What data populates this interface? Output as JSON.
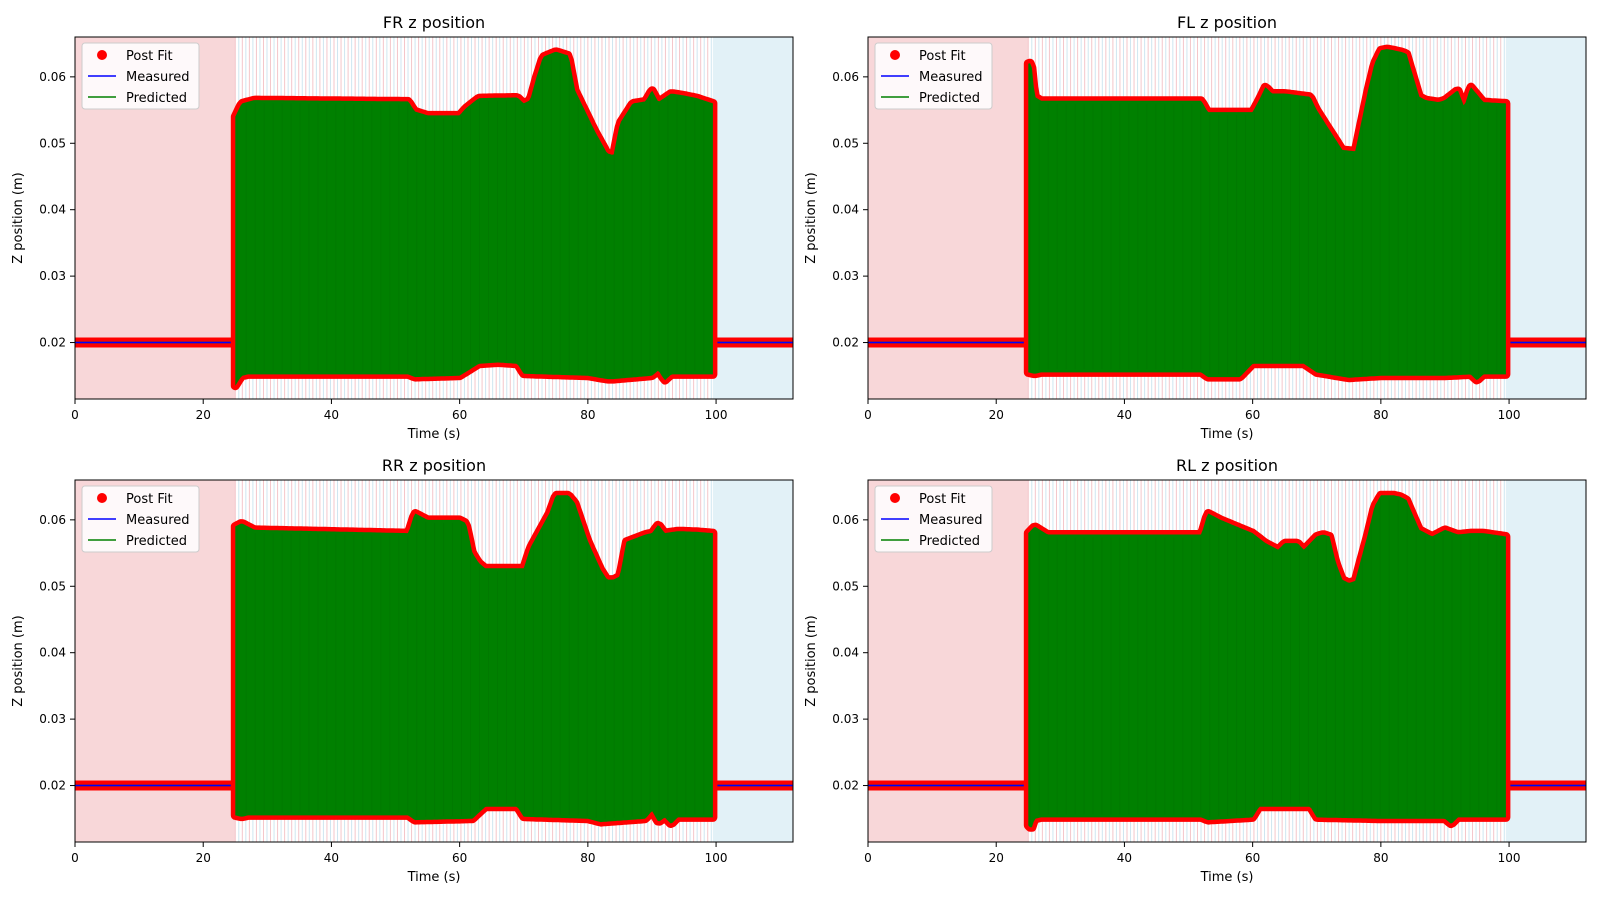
{
  "chart_data": [
    {
      "type": "line",
      "title": "FR z position",
      "xlabel": "Time (s)",
      "ylabel": "Z position (m)",
      "xlim": [
        0,
        112
      ],
      "ylim": [
        0.0115,
        0.066
      ],
      "xticks": [
        0,
        20,
        40,
        60,
        80,
        100
      ],
      "yticks": [
        0.02,
        0.03,
        0.04,
        0.05,
        0.06
      ],
      "grid": false,
      "legend_position": "top-left",
      "legend": [
        "Post Fit",
        "Measured",
        "Predicted"
      ],
      "stance_region_end": 25,
      "swing_region_start": 99.5,
      "oscillation_start": 25,
      "oscillation_end": 99.5,
      "steady_value": 0.02,
      "upper_envelope": {
        "x": [
          25,
          26,
          28,
          52,
          53,
          55,
          60,
          61,
          63,
          69,
          70,
          71,
          72,
          73,
          75,
          77,
          78,
          79,
          81,
          83,
          84,
          85,
          87,
          89,
          90,
          91,
          93,
          95,
          97,
          99.5
        ],
        "y": [
          0.054,
          0.056,
          0.0565,
          0.0563,
          0.0548,
          0.0542,
          0.0542,
          0.0553,
          0.0568,
          0.0569,
          0.056,
          0.0565,
          0.06,
          0.063,
          0.0638,
          0.0632,
          0.058,
          0.056,
          0.052,
          0.0485,
          0.0482,
          0.053,
          0.056,
          0.0563,
          0.058,
          0.0562,
          0.0575,
          0.0572,
          0.0568,
          0.056
        ]
      },
      "lower_envelope": {
        "x": [
          25,
          26,
          27,
          52,
          53,
          60,
          63,
          66,
          69,
          70,
          80,
          83,
          84,
          90,
          91,
          92,
          93,
          94,
          99.5
        ],
        "y": [
          0.0135,
          0.015,
          0.0152,
          0.0152,
          0.0148,
          0.015,
          0.0168,
          0.017,
          0.0168,
          0.0153,
          0.015,
          0.0145,
          0.0145,
          0.015,
          0.0158,
          0.0143,
          0.0152,
          0.0152,
          0.0152
        ]
      }
    },
    {
      "type": "line",
      "title": "FL z position",
      "xlabel": "Time (s)",
      "ylabel": "Z position (m)",
      "xlim": [
        0,
        112
      ],
      "ylim": [
        0.0115,
        0.066
      ],
      "xticks": [
        0,
        20,
        40,
        60,
        80,
        100
      ],
      "yticks": [
        0.02,
        0.03,
        0.04,
        0.05,
        0.06
      ],
      "grid": false,
      "legend_position": "top-left",
      "legend": [
        "Post Fit",
        "Measured",
        "Predicted"
      ],
      "stance_region_end": 25,
      "swing_region_start": 99.5,
      "oscillation_start": 25,
      "oscillation_end": 99.5,
      "steady_value": 0.02,
      "upper_envelope": {
        "x": [
          25,
          25.5,
          26,
          27,
          52,
          53,
          60,
          61,
          62,
          63,
          65,
          69,
          70,
          72,
          74,
          76,
          78,
          79,
          80,
          81,
          82,
          83,
          84,
          86,
          87,
          89,
          90,
          92,
          93,
          94,
          96,
          99.5
        ],
        "y": [
          0.062,
          0.0621,
          0.057,
          0.0564,
          0.0564,
          0.0547,
          0.0547,
          0.0565,
          0.0585,
          0.0575,
          0.0575,
          0.057,
          0.055,
          0.052,
          0.049,
          0.0488,
          0.058,
          0.062,
          0.064,
          0.0642,
          0.064,
          0.0638,
          0.0635,
          0.057,
          0.0565,
          0.0562,
          0.0565,
          0.058,
          0.0555,
          0.0585,
          0.0562,
          0.056
        ]
      },
      "lower_envelope": {
        "x": [
          25,
          26,
          27,
          52,
          53,
          58,
          60,
          68,
          70,
          75,
          80,
          90,
          94,
          95,
          96,
          99.5
        ],
        "y": [
          0.0155,
          0.0153,
          0.0155,
          0.0155,
          0.0148,
          0.0148,
          0.0168,
          0.0168,
          0.0155,
          0.0147,
          0.015,
          0.015,
          0.0152,
          0.0143,
          0.0152,
          0.0152
        ]
      }
    },
    {
      "type": "line",
      "title": "RR z position",
      "xlabel": "Time (s)",
      "ylabel": "Z position (m)",
      "xlim": [
        0,
        112
      ],
      "ylim": [
        0.0115,
        0.066
      ],
      "xticks": [
        0,
        20,
        40,
        60,
        80,
        100
      ],
      "yticks": [
        0.02,
        0.03,
        0.04,
        0.05,
        0.06
      ],
      "grid": false,
      "legend_position": "top-left",
      "legend": [
        "Post Fit",
        "Measured",
        "Predicted"
      ],
      "stance_region_end": 25,
      "swing_region_start": 99.5,
      "oscillation_start": 25,
      "oscillation_end": 99.5,
      "steady_value": 0.02,
      "upper_envelope": {
        "x": [
          25,
          26,
          28,
          52,
          53,
          55,
          60,
          61,
          62,
          63,
          64,
          70,
          71,
          72,
          74,
          75,
          77,
          78,
          80,
          82,
          83,
          84,
          85,
          86,
          89,
          90,
          91,
          92,
          94,
          97,
          99.5
        ],
        "y": [
          0.059,
          0.0595,
          0.0585,
          0.058,
          0.061,
          0.06,
          0.06,
          0.0595,
          0.055,
          0.0535,
          0.0527,
          0.0527,
          0.0557,
          0.0575,
          0.061,
          0.0637,
          0.0637,
          0.0625,
          0.0568,
          0.0525,
          0.051,
          0.051,
          0.0515,
          0.0567,
          0.0578,
          0.058,
          0.0593,
          0.058,
          0.0583,
          0.0582,
          0.058
        ]
      },
      "lower_envelope": {
        "x": [
          25,
          26,
          27,
          52,
          53,
          62,
          64,
          69,
          70,
          80,
          82,
          89,
          90,
          91,
          92,
          93,
          94,
          99.5
        ],
        "y": [
          0.0155,
          0.0153,
          0.0155,
          0.0155,
          0.0148,
          0.015,
          0.0168,
          0.0168,
          0.0153,
          0.015,
          0.0145,
          0.015,
          0.0162,
          0.0145,
          0.0152,
          0.0142,
          0.0152,
          0.0152
        ]
      }
    },
    {
      "type": "line",
      "title": "RL z position",
      "xlabel": "Time (s)",
      "ylabel": "Z position (m)",
      "xlim": [
        0,
        112
      ],
      "ylim": [
        0.0115,
        0.066
      ],
      "xticks": [
        0,
        20,
        40,
        60,
        80,
        100
      ],
      "yticks": [
        0.02,
        0.03,
        0.04,
        0.05,
        0.06
      ],
      "grid": false,
      "legend_position": "top-left",
      "legend": [
        "Post Fit",
        "Measured",
        "Predicted"
      ],
      "stance_region_end": 25,
      "swing_region_start": 99.5,
      "oscillation_start": 25,
      "oscillation_end": 99.5,
      "steady_value": 0.02,
      "upper_envelope": {
        "x": [
          25,
          26,
          28,
          52,
          53,
          55,
          60,
          62,
          64,
          65,
          67,
          68,
          70,
          71,
          72,
          73,
          74,
          75,
          76,
          78,
          79,
          80,
          82,
          83,
          84,
          86,
          88,
          90,
          92,
          94,
          96,
          99.5
        ],
        "y": [
          0.058,
          0.059,
          0.0578,
          0.0578,
          0.061,
          0.06,
          0.058,
          0.0565,
          0.0555,
          0.0565,
          0.0565,
          0.0555,
          0.0575,
          0.0578,
          0.0575,
          0.0535,
          0.051,
          0.0505,
          0.0508,
          0.058,
          0.062,
          0.0637,
          0.0637,
          0.0635,
          0.063,
          0.0585,
          0.0575,
          0.0585,
          0.0578,
          0.058,
          0.058,
          0.0575
        ]
      },
      "lower_envelope": {
        "x": [
          25,
          25.5,
          26,
          27,
          52,
          53,
          60,
          61,
          69,
          70,
          80,
          90,
          91,
          92,
          93,
          99.5
        ],
        "y": [
          0.014,
          0.0135,
          0.015,
          0.0152,
          0.0152,
          0.0148,
          0.0152,
          0.0168,
          0.0168,
          0.0152,
          0.015,
          0.015,
          0.0142,
          0.0152,
          0.0152,
          0.0152
        ]
      }
    }
  ],
  "colors": {
    "post_fit": "#ff0000",
    "measured": "#0000ff",
    "predicted": "#008000",
    "stance_shade": "#f8d7d9",
    "swing_shade": "#e2f1f7"
  }
}
